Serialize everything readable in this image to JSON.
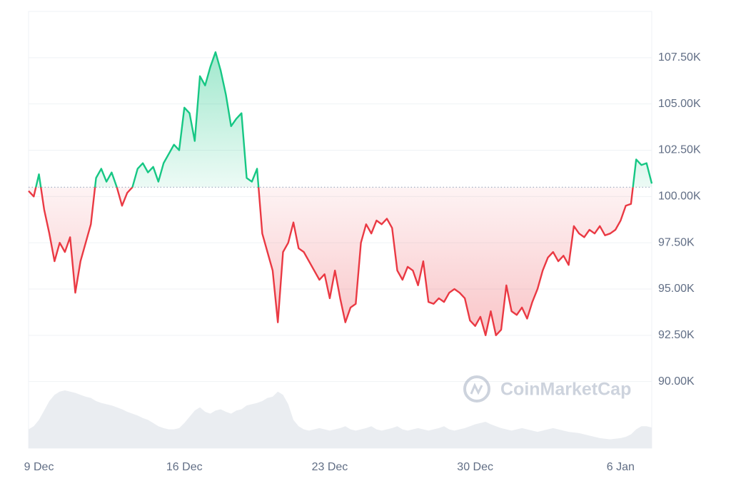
{
  "chart_data": {
    "type": "line",
    "watermark": "CoinMarketCap",
    "categories": [
      null,
      null,
      "9 Dec",
      null,
      null,
      null,
      null,
      null,
      null,
      null,
      null,
      null,
      null,
      null,
      null,
      null,
      null,
      null,
      null,
      null,
      null,
      null,
      null,
      null,
      null,
      null,
      null,
      null,
      null,
      null,
      "16 Dec",
      null,
      null,
      null,
      null,
      null,
      null,
      null,
      null,
      null,
      null,
      null,
      null,
      null,
      null,
      null,
      null,
      null,
      null,
      null,
      null,
      null,
      null,
      null,
      null,
      null,
      null,
      null,
      "23 Dec",
      null,
      null,
      null,
      null,
      null,
      null,
      null,
      null,
      null,
      null,
      null,
      null,
      null,
      null,
      null,
      null,
      null,
      null,
      null,
      null,
      null,
      null,
      null,
      null,
      null,
      null,
      null,
      "30 Dec",
      null,
      null,
      null,
      null,
      null,
      null,
      null,
      null,
      null,
      null,
      null,
      null,
      null,
      null,
      null,
      null,
      null,
      null,
      null,
      null,
      null,
      null,
      null,
      null,
      null,
      null,
      null,
      "6 Jan",
      null,
      null,
      null,
      null,
      null,
      null
    ],
    "values": [
      100300,
      100000,
      101200,
      99300,
      98000,
      96500,
      97500,
      97000,
      97800,
      94800,
      96500,
      97500,
      98500,
      101000,
      101500,
      100800,
      101300,
      100500,
      99500,
      100200,
      100500,
      101500,
      101800,
      101300,
      101600,
      100800,
      101800,
      102300,
      102800,
      102500,
      104800,
      104500,
      103000,
      106500,
      106000,
      107000,
      107800,
      106800,
      105500,
      103800,
      104200,
      104500,
      101000,
      100800,
      101500,
      98000,
      97000,
      96000,
      93200,
      97000,
      97500,
      98600,
      97200,
      97000,
      96500,
      96000,
      95500,
      95800,
      94500,
      96000,
      94500,
      93200,
      94000,
      94200,
      97500,
      98500,
      98000,
      98700,
      98500,
      98800,
      98300,
      96000,
      95500,
      96200,
      96000,
      95200,
      96500,
      94300,
      94200,
      94500,
      94300,
      94800,
      95000,
      94800,
      94500,
      93300,
      93000,
      93500,
      92500,
      93800,
      92500,
      92800,
      95200,
      93800,
      93600,
      94000,
      93400,
      94300,
      95000,
      96000,
      96700,
      97000,
      96500,
      96800,
      96300,
      98400,
      98000,
      97800,
      98200,
      98000,
      98400,
      97900,
      98000,
      98200,
      98700,
      99500,
      99600,
      102000,
      101700,
      101800,
      100700
    ],
    "volume": [
      30,
      35,
      45,
      60,
      75,
      85,
      90,
      92,
      90,
      88,
      85,
      82,
      80,
      75,
      72,
      70,
      68,
      65,
      62,
      58,
      55,
      52,
      48,
      45,
      40,
      35,
      32,
      30,
      30,
      32,
      40,
      50,
      60,
      65,
      58,
      55,
      60,
      62,
      58,
      55,
      60,
      62,
      68,
      70,
      72,
      75,
      80,
      82,
      90,
      85,
      70,
      45,
      35,
      30,
      28,
      30,
      32,
      30,
      28,
      30,
      32,
      35,
      30,
      28,
      30,
      32,
      35,
      30,
      28,
      30,
      32,
      35,
      30,
      28,
      30,
      32,
      30,
      28,
      30,
      32,
      35,
      30,
      28,
      30,
      32,
      35,
      38,
      40,
      42,
      38,
      35,
      32,
      30,
      28,
      30,
      32,
      30,
      28,
      26,
      28,
      30,
      32,
      30,
      28,
      26,
      25,
      24,
      22,
      20,
      18,
      16,
      15,
      14,
      15,
      16,
      18,
      22,
      30,
      35,
      35,
      33
    ],
    "baseline": 100500,
    "up_color": "#16c784",
    "down_color": "#ea3943",
    "volume_color": "#eaedf1",
    "ylim": [
      86400,
      110000
    ],
    "yticks": [
      {
        "value": 90000,
        "label": "90.00K"
      },
      {
        "value": 92500,
        "label": "92.50K"
      },
      {
        "value": 95000,
        "label": "95.00K"
      },
      {
        "value": 97500,
        "label": "97.50K"
      },
      {
        "value": 100000,
        "label": "100.00K"
      },
      {
        "value": 102500,
        "label": "102.50K"
      },
      {
        "value": 105000,
        "label": "105.00K"
      },
      {
        "value": 107500,
        "label": "107.50K"
      }
    ],
    "y2lim": [
      0,
      100
    ],
    "grid": true
  }
}
